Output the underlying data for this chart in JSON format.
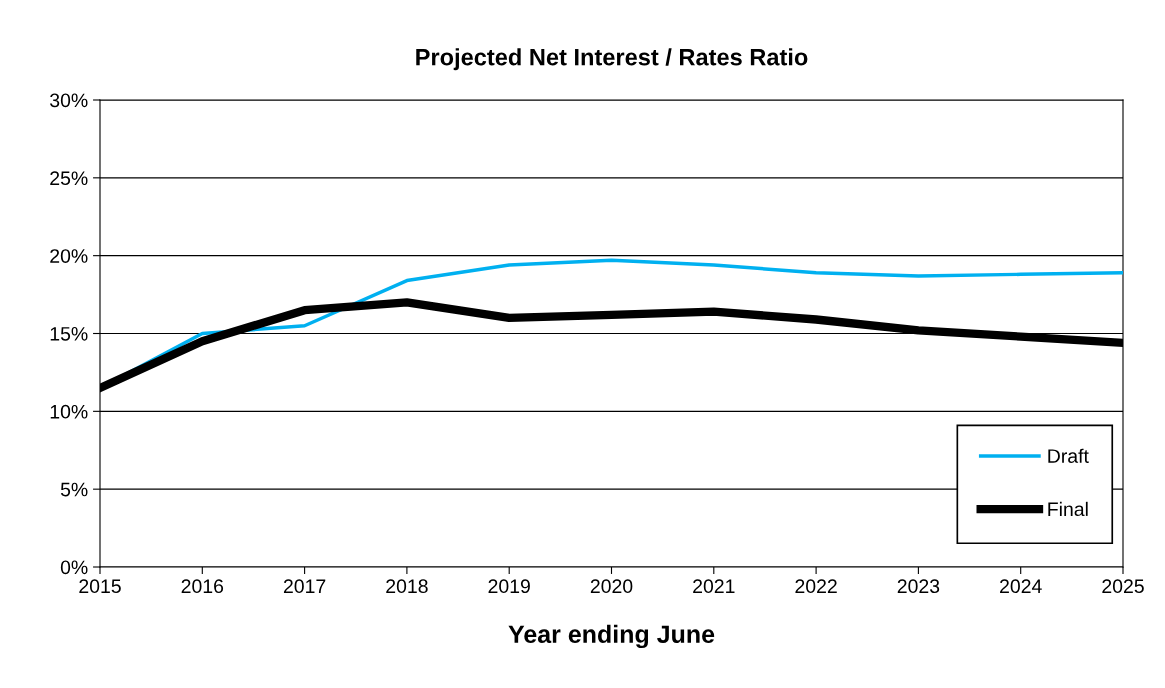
{
  "chart_data": {
    "type": "line",
    "title": "Projected Net Interest / Rates Ratio",
    "xlabel": "Year ending June",
    "x": [
      2015,
      2016,
      2017,
      2018,
      2019,
      2020,
      2021,
      2022,
      2023,
      2024,
      2025
    ],
    "series": [
      {
        "name": "Draft",
        "color": "#00b0f0",
        "values": [
          11.5,
          15.0,
          15.5,
          18.4,
          19.4,
          19.7,
          19.4,
          18.9,
          18.7,
          18.8,
          18.9
        ]
      },
      {
        "name": "Final",
        "color": "#000000",
        "values": [
          11.5,
          14.5,
          16.5,
          17.0,
          16.0,
          16.2,
          16.4,
          15.9,
          15.2,
          14.8,
          14.4
        ]
      }
    ],
    "xlim": [
      2015,
      2025
    ],
    "xticks": [
      2015,
      2016,
      2017,
      2018,
      2019,
      2020,
      2021,
      2022,
      2023,
      2024,
      2025
    ],
    "ylim": [
      0,
      30
    ],
    "yticks": [
      {
        "value": 0,
        "label": "0%"
      },
      {
        "value": 5,
        "label": "5%"
      },
      {
        "value": 10,
        "label": "10%"
      },
      {
        "value": 15,
        "label": "15%"
      },
      {
        "value": 20,
        "label": "20%"
      },
      {
        "value": 25,
        "label": "25%"
      },
      {
        "value": 30,
        "label": "30%"
      }
    ],
    "grid": "y",
    "legend": "bottom right",
    "marker": "none",
    "line_style": "solid"
  }
}
